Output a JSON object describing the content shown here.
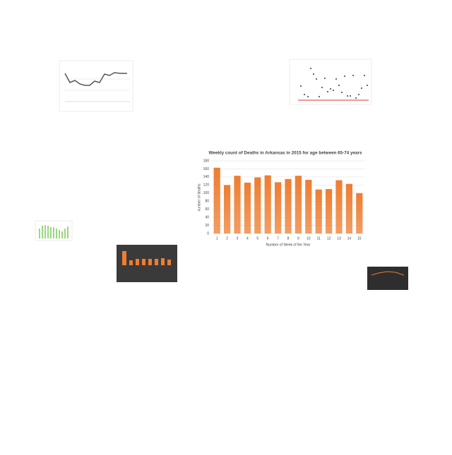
{
  "chart_data": {
    "type": "bar",
    "title": "Weekly count of Deaths in Arkansas in 2015 for age between 65-74 years",
    "x_label": "Number of Week of the Year",
    "y_label": "number of deaths",
    "categories": [
      "1",
      "2",
      "3",
      "4",
      "5",
      "6",
      "7",
      "8",
      "9",
      "10",
      "11",
      "12",
      "13",
      "14",
      "15"
    ],
    "values": [
      163,
      120,
      143,
      126,
      139,
      144,
      127,
      135,
      143,
      133,
      109,
      110,
      132,
      123,
      100
    ],
    "color": "#ee7d31",
    "ylim": [
      0,
      180
    ],
    "yticks": [
      0,
      20,
      40,
      60,
      80,
      100,
      120,
      140,
      160,
      180
    ],
    "grid": true
  }
}
